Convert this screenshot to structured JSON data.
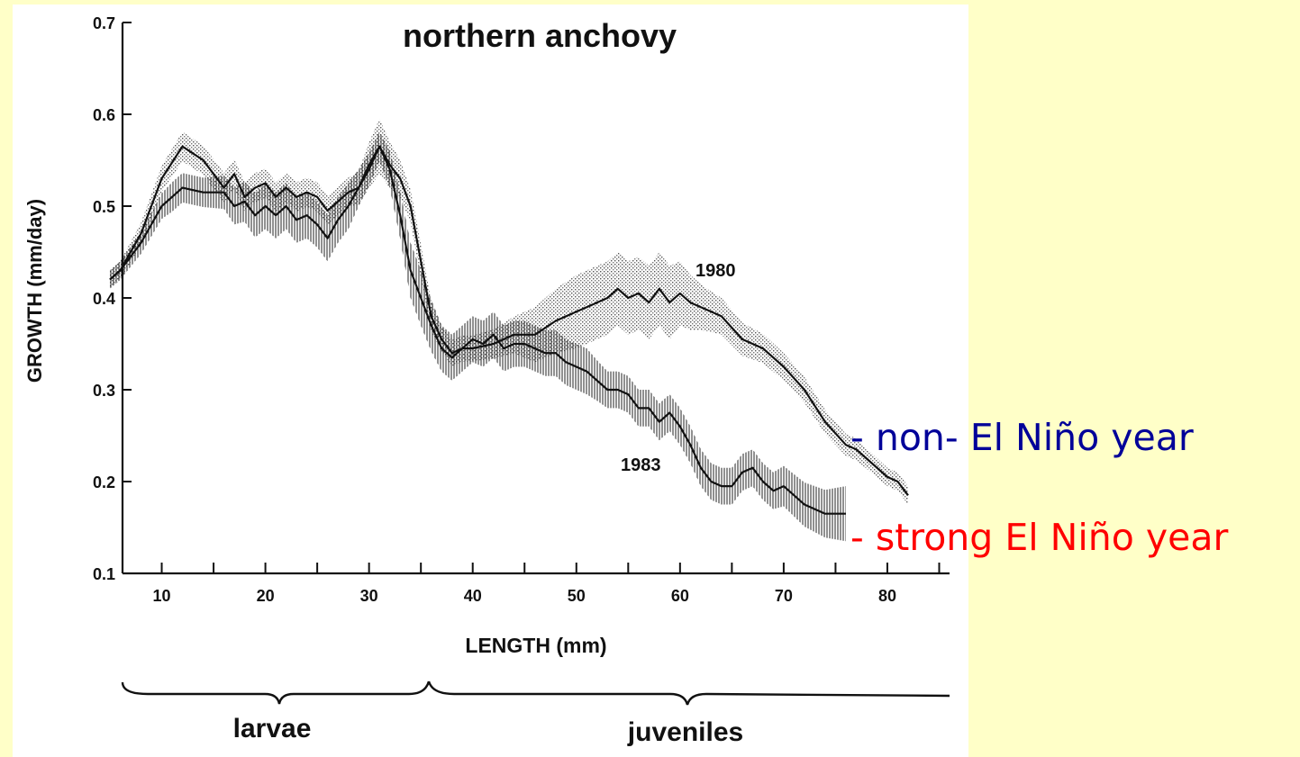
{
  "chart_data": {
    "type": "line",
    "title": "northern anchovy",
    "xlabel": "LENGTH (mm)",
    "ylabel": "GROWTH (mm/day)",
    "xlim": [
      5,
      86
    ],
    "ylim": [
      0.1,
      0.7
    ],
    "xticks": [
      10,
      20,
      30,
      40,
      50,
      60,
      70,
      80
    ],
    "yticks": [
      0.1,
      0.2,
      0.3,
      0.4,
      0.5,
      0.6,
      0.7
    ],
    "xtick_labels": [
      "10",
      "20",
      "30",
      "40",
      "50",
      "60",
      "70",
      "80"
    ],
    "ytick_labels": [
      "0.1",
      "0.2",
      "0.3",
      "0.4",
      "0.5",
      "0.6",
      "0.7"
    ],
    "grid": false,
    "series": [
      {
        "name": "1980",
        "band": "stippled",
        "x": [
          5,
          6,
          8,
          10,
          12,
          14,
          15,
          16,
          17,
          18,
          19,
          20,
          21,
          22,
          23,
          24,
          25,
          26,
          27,
          28,
          29,
          30,
          31,
          32,
          33,
          34,
          35,
          36,
          37,
          38,
          39,
          40,
          42,
          44,
          46,
          48,
          50,
          51,
          52,
          53,
          54,
          55,
          56,
          57,
          58,
          59,
          60,
          61,
          62,
          63,
          64,
          66,
          68,
          70,
          72,
          74,
          76,
          77,
          78,
          80,
          81,
          82
        ],
        "values": [
          0.42,
          0.43,
          0.47,
          0.53,
          0.565,
          0.55,
          0.535,
          0.52,
          0.535,
          0.51,
          0.52,
          0.525,
          0.51,
          0.52,
          0.51,
          0.515,
          0.51,
          0.495,
          0.505,
          0.515,
          0.52,
          0.545,
          0.565,
          0.545,
          0.53,
          0.5,
          0.44,
          0.38,
          0.355,
          0.34,
          0.345,
          0.345,
          0.35,
          0.36,
          0.36,
          0.375,
          0.385,
          0.39,
          0.395,
          0.4,
          0.41,
          0.4,
          0.405,
          0.395,
          0.41,
          0.395,
          0.405,
          0.395,
          0.39,
          0.385,
          0.38,
          0.355,
          0.345,
          0.325,
          0.3,
          0.265,
          0.24,
          0.235,
          0.225,
          0.205,
          0.2,
          0.185
        ],
        "band_halfwidth": [
          0.01,
          0.01,
          0.012,
          0.014,
          0.016,
          0.016,
          0.016,
          0.016,
          0.016,
          0.016,
          0.016,
          0.016,
          0.016,
          0.016,
          0.016,
          0.016,
          0.016,
          0.016,
          0.016,
          0.016,
          0.018,
          0.025,
          0.03,
          0.025,
          0.02,
          0.018,
          0.018,
          0.016,
          0.014,
          0.014,
          0.014,
          0.014,
          0.016,
          0.02,
          0.03,
          0.035,
          0.04,
          0.04,
          0.04,
          0.04,
          0.04,
          0.04,
          0.04,
          0.04,
          0.04,
          0.04,
          0.035,
          0.03,
          0.025,
          0.022,
          0.02,
          0.018,
          0.016,
          0.015,
          0.014,
          0.013,
          0.012,
          0.012,
          0.011,
          0.01,
          0.01,
          0.01
        ]
      },
      {
        "name": "1983",
        "band": "hatched",
        "x": [
          5,
          6,
          8,
          10,
          11,
          12,
          14,
          16,
          17,
          18,
          19,
          20,
          21,
          22,
          23,
          24,
          25,
          26,
          27,
          28,
          29,
          30,
          31,
          32,
          33,
          34,
          35,
          36,
          37,
          38,
          39,
          40,
          41,
          42,
          43,
          44,
          45,
          46,
          47,
          48,
          49,
          50,
          51,
          52,
          53,
          54,
          55,
          56,
          57,
          58,
          59,
          60,
          61,
          62,
          63,
          64,
          65,
          66,
          67,
          68,
          69,
          70,
          72,
          74,
          75,
          76
        ],
        "values": [
          0.42,
          0.43,
          0.46,
          0.5,
          0.51,
          0.52,
          0.515,
          0.515,
          0.5,
          0.505,
          0.49,
          0.5,
          0.49,
          0.5,
          0.485,
          0.49,
          0.48,
          0.465,
          0.485,
          0.5,
          0.52,
          0.54,
          0.565,
          0.54,
          0.49,
          0.43,
          0.4,
          0.37,
          0.345,
          0.335,
          0.345,
          0.355,
          0.35,
          0.36,
          0.345,
          0.35,
          0.35,
          0.345,
          0.34,
          0.34,
          0.33,
          0.325,
          0.32,
          0.31,
          0.3,
          0.3,
          0.295,
          0.28,
          0.28,
          0.265,
          0.275,
          0.26,
          0.24,
          0.215,
          0.2,
          0.195,
          0.195,
          0.21,
          0.215,
          0.2,
          0.19,
          0.195,
          0.175,
          0.165,
          0.165,
          0.165
        ],
        "band_halfwidth": [
          0.01,
          0.01,
          0.012,
          0.014,
          0.016,
          0.016,
          0.016,
          0.018,
          0.02,
          0.022,
          0.024,
          0.025,
          0.025,
          0.025,
          0.025,
          0.025,
          0.025,
          0.025,
          0.025,
          0.025,
          0.02,
          0.018,
          0.016,
          0.02,
          0.025,
          0.03,
          0.03,
          0.028,
          0.025,
          0.025,
          0.025,
          0.025,
          0.025,
          0.025,
          0.025,
          0.025,
          0.025,
          0.025,
          0.025,
          0.025,
          0.025,
          0.025,
          0.025,
          0.022,
          0.02,
          0.02,
          0.02,
          0.02,
          0.02,
          0.02,
          0.02,
          0.02,
          0.02,
          0.02,
          0.02,
          0.02,
          0.02,
          0.02,
          0.02,
          0.02,
          0.02,
          0.022,
          0.024,
          0.026,
          0.028,
          0.03
        ]
      }
    ],
    "annotations": [
      "1980",
      "1983"
    ],
    "stage_labels": [
      "larvae",
      "juveniles"
    ]
  },
  "notes": [
    {
      "text": "- non- El Niño year",
      "color": "#000099"
    },
    {
      "text": "- strong El Niño year",
      "color": "#ff0000"
    }
  ]
}
